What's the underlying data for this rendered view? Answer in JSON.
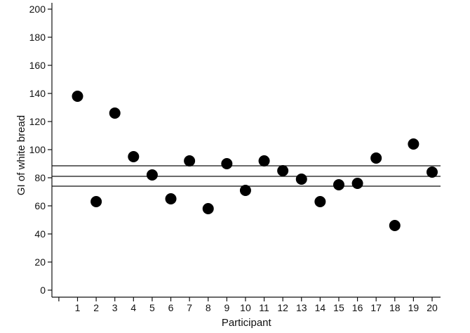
{
  "chart_data": {
    "type": "scatter",
    "title": "",
    "xlabel": "Participant",
    "ylabel": "GI of white bread",
    "xlim": [
      -0.5,
      20.5
    ],
    "ylim": [
      -5,
      205
    ],
    "x_ticks": [
      1,
      2,
      3,
      4,
      5,
      6,
      7,
      8,
      9,
      10,
      11,
      12,
      13,
      14,
      15,
      16,
      17,
      18,
      19,
      20
    ],
    "y_ticks": [
      0,
      20,
      40,
      60,
      80,
      100,
      120,
      140,
      160,
      180,
      200
    ],
    "grid": false,
    "points": [
      {
        "x": 1,
        "y": 138
      },
      {
        "x": 2,
        "y": 63
      },
      {
        "x": 3,
        "y": 126
      },
      {
        "x": 4,
        "y": 95
      },
      {
        "x": 5,
        "y": 82
      },
      {
        "x": 6,
        "y": 65
      },
      {
        "x": 7,
        "y": 92
      },
      {
        "x": 8,
        "y": 58
      },
      {
        "x": 9,
        "y": 90
      },
      {
        "x": 10,
        "y": 71
      },
      {
        "x": 11,
        "y": 92
      },
      {
        "x": 12,
        "y": 85
      },
      {
        "x": 13,
        "y": 79
      },
      {
        "x": 14,
        "y": 63
      },
      {
        "x": 15,
        "y": 75
      },
      {
        "x": 16,
        "y": 76
      },
      {
        "x": 17,
        "y": 94
      },
      {
        "x": 18,
        "y": 46
      },
      {
        "x": 19,
        "y": 104
      },
      {
        "x": 20,
        "y": 84
      }
    ],
    "reference_lines": [
      {
        "name": "upper-ci",
        "y": 88.5
      },
      {
        "name": "mean",
        "y": 81
      },
      {
        "name": "lower-ci",
        "y": 74
      }
    ],
    "colors": {
      "points": "#000000",
      "lines": "#111111"
    }
  }
}
